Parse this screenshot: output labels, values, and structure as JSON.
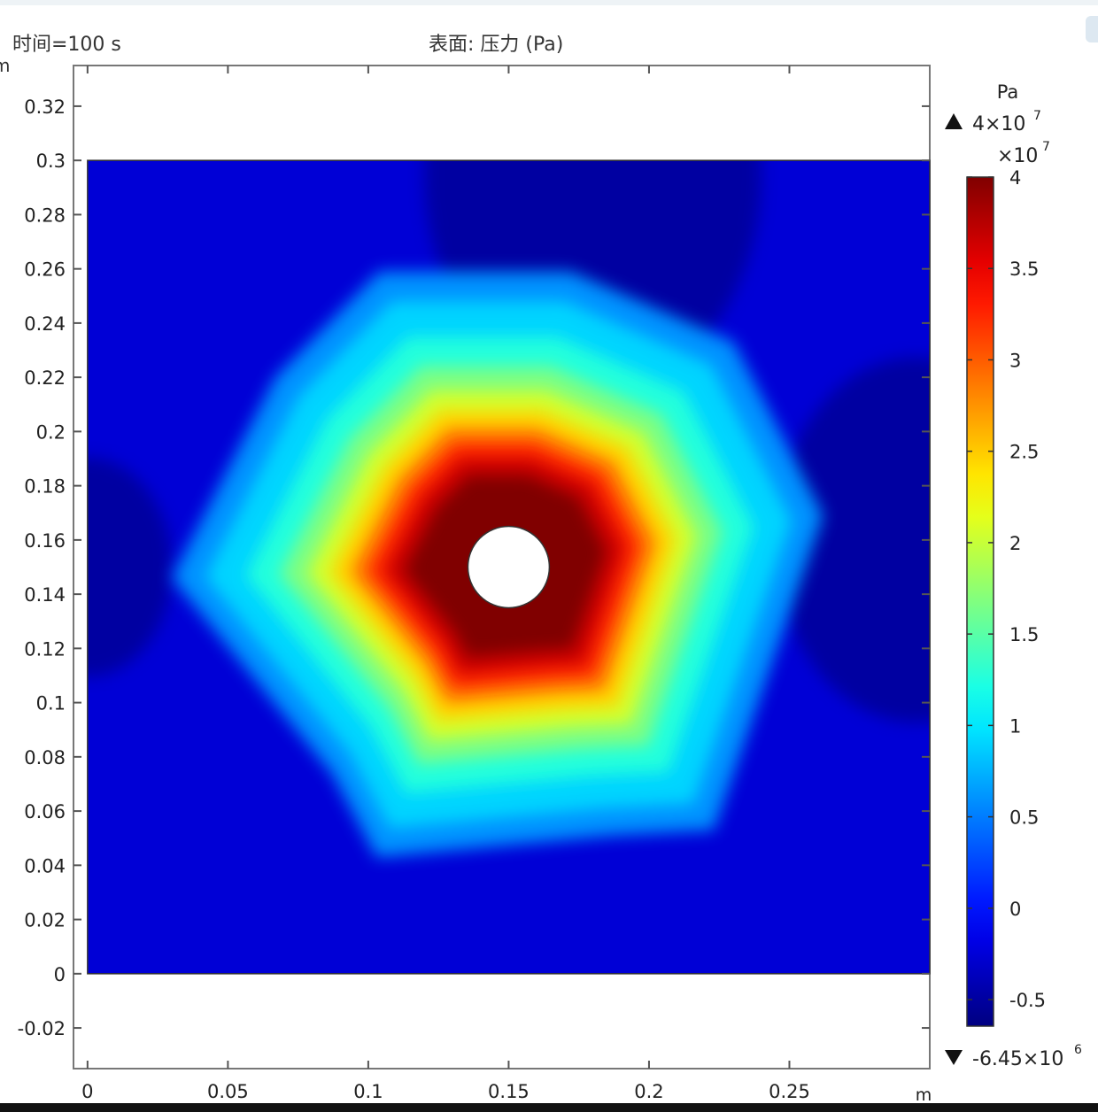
{
  "header": {
    "time_label": "时间=100 s",
    "plot_title": "表面: 压力 (Pa)",
    "partial_axis_unit": "m"
  },
  "chart_data": {
    "type": "heatmap",
    "title": "表面: 压力 (Pa)",
    "subtitle": "时间=100 s",
    "quantity": "压力",
    "unit": "Pa",
    "x_unit_label": "m",
    "y_unit_label": "m",
    "xlim": [
      -0.005,
      0.3
    ],
    "ylim": [
      -0.035,
      0.335
    ],
    "x_ticks": [
      0,
      0.05,
      0.1,
      0.15,
      0.2,
      0.25
    ],
    "x_tick_labels": [
      "0",
      "0.05",
      "0.1",
      "0.15",
      "0.2",
      "0.25"
    ],
    "y_ticks": [
      -0.02,
      0,
      0.02,
      0.04,
      0.06,
      0.08,
      0.1,
      0.12,
      0.14,
      0.16,
      0.18,
      0.2,
      0.22,
      0.24,
      0.26,
      0.28,
      0.3,
      0.32
    ],
    "y_tick_labels": [
      "-0.02",
      "0",
      "0.02",
      "0.04",
      "0.06",
      "0.08",
      "0.1",
      "0.12",
      "0.14",
      "0.16",
      "0.18",
      "0.2",
      "0.22",
      "0.24",
      "0.26",
      "0.28",
      "0.3",
      "0.32"
    ],
    "domain": {
      "x": [
        0,
        0.3
      ],
      "y": [
        0,
        0.3
      ]
    },
    "hole": {
      "center": [
        0.15,
        0.15
      ],
      "radius": 0.0145
    },
    "high_pressure_front_vertices": [
      [
        0.104,
        0.259
      ],
      [
        0.172,
        0.259
      ],
      [
        0.23,
        0.233
      ],
      [
        0.262,
        0.169
      ],
      [
        0.223,
        0.053
      ],
      [
        0.187,
        0.051
      ],
      [
        0.103,
        0.043
      ],
      [
        0.087,
        0.074
      ],
      [
        0.03,
        0.146
      ],
      [
        0.067,
        0.22
      ]
    ],
    "colorbar": {
      "colormap": "jet",
      "unit": "Pa",
      "exponent_label": "×10",
      "exponent": "7",
      "min": -6450000,
      "max": 40000000,
      "ticks": [
        -0.5,
        0,
        0.5,
        1,
        1.5,
        2,
        2.5,
        3,
        3.5,
        4
      ],
      "tick_labels": [
        "-0.5",
        "0",
        "0.5",
        "1",
        "1.5",
        "2",
        "2.5",
        "3",
        "3.5",
        "4"
      ],
      "max_label": "4×10",
      "max_label_exp": "7",
      "min_label": "-6.45×10",
      "min_label_exp": "6"
    }
  }
}
